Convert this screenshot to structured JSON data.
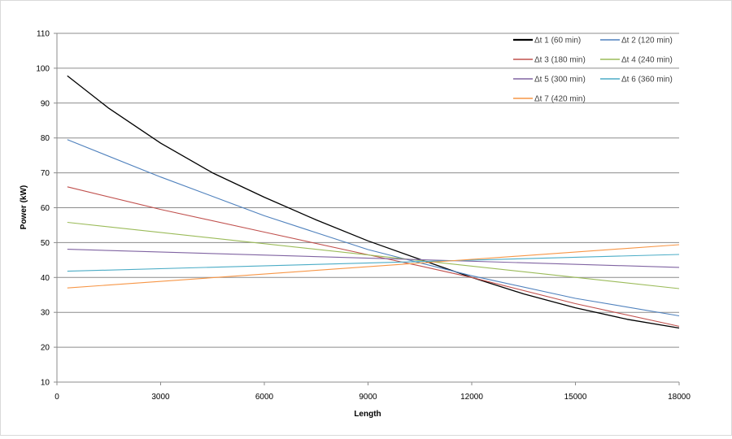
{
  "chart_data": {
    "type": "line",
    "title": "",
    "xlabel": "Length",
    "ylabel": "Power (kW)",
    "xlim": [
      0,
      18000
    ],
    "ylim": [
      10,
      110
    ],
    "xticks": [
      "0",
      "3000",
      "6000",
      "9000",
      "12000",
      "15000",
      "18000"
    ],
    "yticks": [
      "10",
      "20",
      "30",
      "40",
      "50",
      "60",
      "70",
      "80",
      "90",
      "100",
      "110"
    ],
    "grid": "horizontal",
    "legend_position": "top-right",
    "series": [
      {
        "name": "Δt 1 (60 min)",
        "color": "#000000",
        "x": [
          300,
          1500,
          3000,
          4500,
          6000,
          7500,
          9000,
          10500,
          12000,
          13500,
          15000,
          16500,
          18000
        ],
        "y": [
          97.8,
          88.5,
          78.5,
          70.0,
          63.0,
          56.5,
          50.5,
          45.2,
          40.0,
          35.3,
          31.3,
          28.0,
          25.5
        ]
      },
      {
        "name": "Δt 2 (120 min)",
        "color": "#4f81bd",
        "x": [
          300,
          3000,
          6000,
          9000,
          10500,
          12000,
          15000,
          18000
        ],
        "y": [
          79.5,
          68.8,
          57.7,
          48.0,
          44.2,
          40.5,
          34.0,
          29.0
        ]
      },
      {
        "name": "Δt 3 (180 min)",
        "color": "#c0504d",
        "x": [
          300,
          3000,
          6000,
          9000,
          10500,
          12000,
          15000,
          18000
        ],
        "y": [
          66.0,
          59.5,
          53.0,
          46.5,
          43.3,
          40.0,
          32.5,
          26.0
        ]
      },
      {
        "name": "Δt 4 (240 min)",
        "color": "#9bbb59",
        "x": [
          300,
          18000
        ],
        "y": [
          55.8,
          36.8
        ]
      },
      {
        "name": "Δt 5 (300 min)",
        "color": "#8064a2",
        "x": [
          300,
          18000
        ],
        "y": [
          48.1,
          42.9
        ]
      },
      {
        "name": "Δt 6 (360 min)",
        "color": "#4bacc6",
        "x": [
          300,
          18000
        ],
        "y": [
          41.8,
          46.6
        ]
      },
      {
        "name": "Δt 7 (420 min)",
        "color": "#f79646",
        "x": [
          300,
          18000
        ],
        "y": [
          37.0,
          49.4
        ]
      }
    ]
  }
}
